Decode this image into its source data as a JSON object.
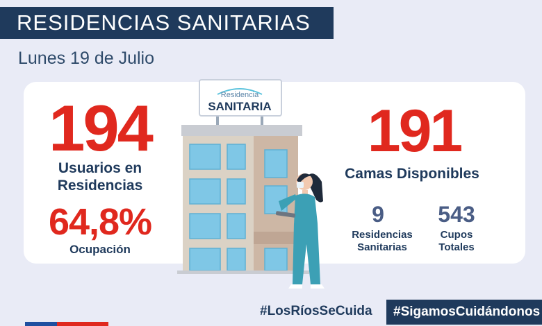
{
  "header": {
    "title": "RESIDENCIAS SANITARIAS",
    "date": "Lunes 19 de Julio"
  },
  "stats": {
    "usuarios_value": "194",
    "usuarios_label_line1": "Usuarios en",
    "usuarios_label_line2": "Residencias",
    "ocupacion_value": "64,8%",
    "ocupacion_label": "Ocupación",
    "camas_value": "191",
    "camas_label": "Camas Disponibles",
    "residencias_value": "9",
    "residencias_label_line1": "Residencias",
    "residencias_label_line2": "Sanitarias",
    "cupos_value": "543",
    "cupos_label_line1": "Cupos",
    "cupos_label_line2": "Totales"
  },
  "sign": {
    "top": "Residencia",
    "bottom": "SANITARIA"
  },
  "footer": {
    "hashtag_left": "#LosRíosSeCuida",
    "hashtag_right": "#SigamosCuidándonos"
  },
  "colors": {
    "navy": "#1f3a5c",
    "red": "#e0281e",
    "slate": "#4a5d85",
    "background": "#e9ebf6"
  }
}
